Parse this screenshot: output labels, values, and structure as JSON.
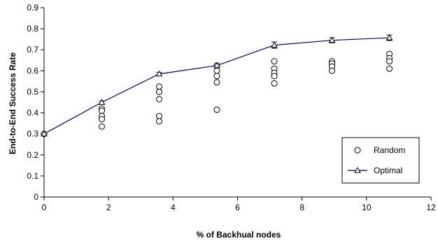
{
  "chart_data": {
    "type": "line",
    "title": "",
    "xlabel": "% of Backhual nodes",
    "ylabel": "End-to-End Success Rate",
    "xlim": [
      0,
      12
    ],
    "ylim": [
      0,
      0.9
    ],
    "xticks": [
      0,
      2,
      4,
      6,
      8,
      10,
      12
    ],
    "yticks": [
      0,
      0.1,
      0.2,
      0.3,
      0.4,
      0.5,
      0.6,
      0.7,
      0.8,
      0.9
    ],
    "grid": false,
    "legend_position": "bottom-right",
    "series": [
      {
        "name": "Random",
        "type": "scatter",
        "marker": "circle",
        "color": "#000000",
        "points": [
          {
            "x": 0,
            "y": 0.3
          },
          {
            "x": 1.79,
            "y": 0.42
          },
          {
            "x": 1.79,
            "y": 0.41
          },
          {
            "x": 1.79,
            "y": 0.385
          },
          {
            "x": 1.79,
            "y": 0.37
          },
          {
            "x": 1.79,
            "y": 0.335
          },
          {
            "x": 3.57,
            "y": 0.525
          },
          {
            "x": 3.57,
            "y": 0.5
          },
          {
            "x": 3.57,
            "y": 0.465
          },
          {
            "x": 3.57,
            "y": 0.385
          },
          {
            "x": 3.57,
            "y": 0.36
          },
          {
            "x": 5.36,
            "y": 0.625
          },
          {
            "x": 5.36,
            "y": 0.6
          },
          {
            "x": 5.36,
            "y": 0.575
          },
          {
            "x": 5.36,
            "y": 0.545
          },
          {
            "x": 5.36,
            "y": 0.415
          },
          {
            "x": 7.14,
            "y": 0.645
          },
          {
            "x": 7.14,
            "y": 0.61
          },
          {
            "x": 7.14,
            "y": 0.59
          },
          {
            "x": 7.14,
            "y": 0.575
          },
          {
            "x": 7.14,
            "y": 0.54
          },
          {
            "x": 8.93,
            "y": 0.645
          },
          {
            "x": 8.93,
            "y": 0.635
          },
          {
            "x": 8.93,
            "y": 0.62
          },
          {
            "x": 8.93,
            "y": 0.6
          },
          {
            "x": 10.71,
            "y": 0.68
          },
          {
            "x": 10.71,
            "y": 0.66
          },
          {
            "x": 10.71,
            "y": 0.645
          },
          {
            "x": 10.71,
            "y": 0.61
          }
        ]
      },
      {
        "name": "Optimal",
        "type": "line",
        "marker": "triangle",
        "color": "#000080",
        "points": [
          {
            "x": 0,
            "y": 0.3,
            "err": 0.005
          },
          {
            "x": 1.79,
            "y": 0.45,
            "err": 0.007
          },
          {
            "x": 3.57,
            "y": 0.585,
            "err": 0.007
          },
          {
            "x": 5.36,
            "y": 0.625,
            "err": 0.007
          },
          {
            "x": 7.14,
            "y": 0.722,
            "err": 0.015
          },
          {
            "x": 8.93,
            "y": 0.745,
            "err": 0.012
          },
          {
            "x": 10.71,
            "y": 0.757,
            "err": 0.013
          }
        ]
      }
    ]
  }
}
